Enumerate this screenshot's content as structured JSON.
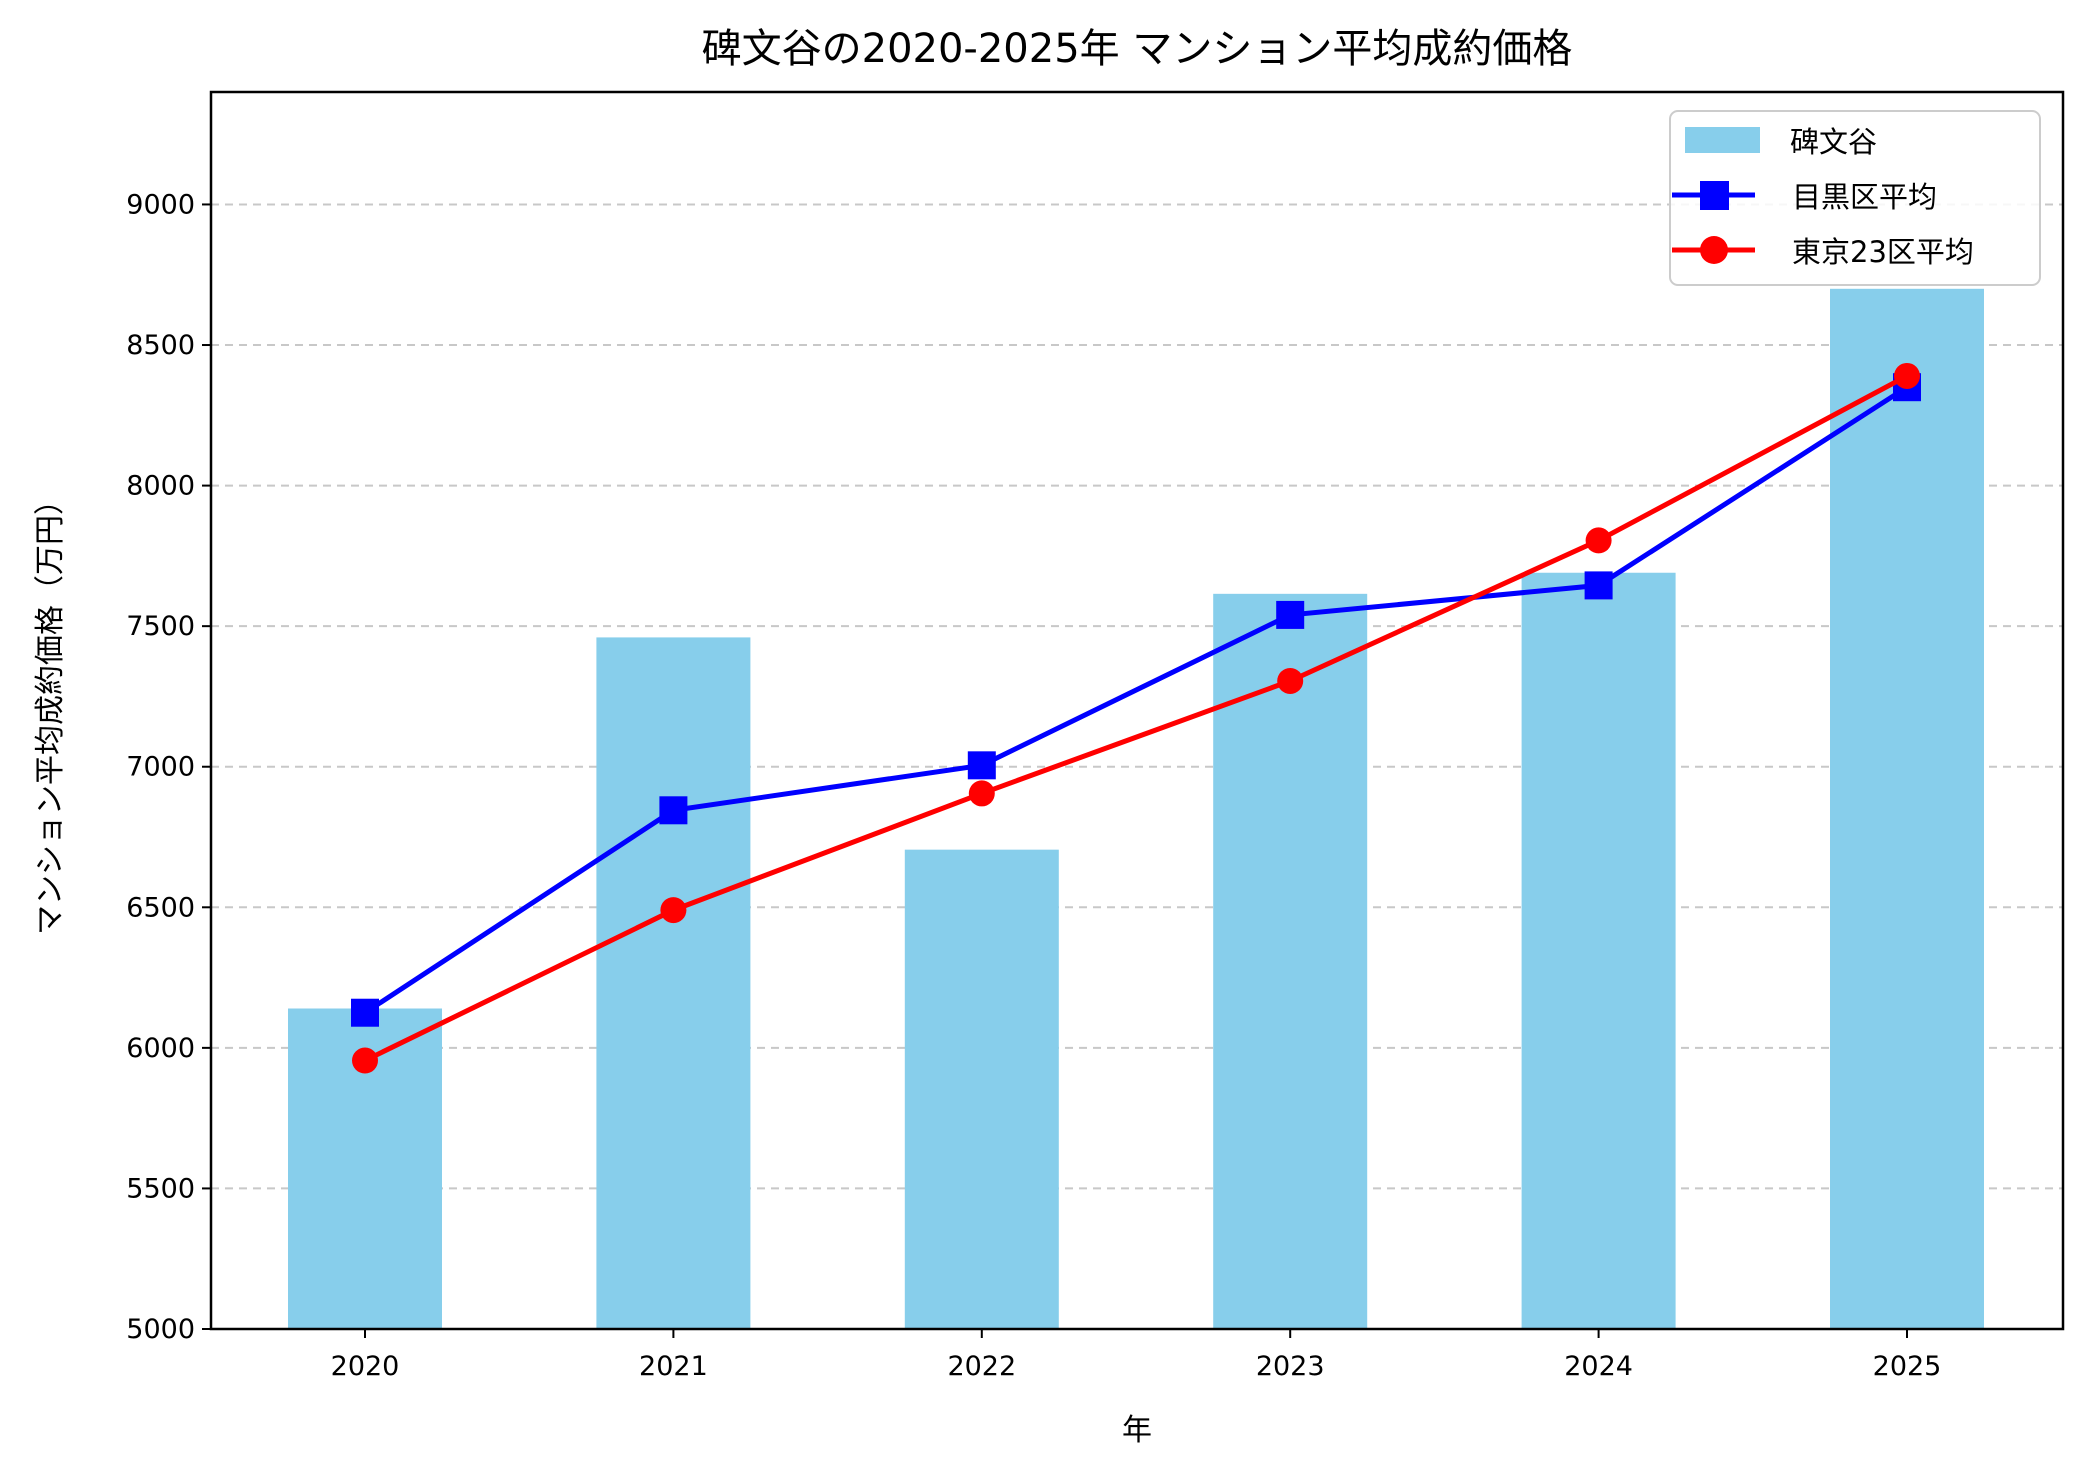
{
  "chart_data": {
    "type": "bar+line",
    "title": "碑文谷の2020-2025年 マンション平均成約価格",
    "xlabel": "年",
    "ylabel": "マンション平均成約価格（万円）",
    "categories": [
      "2020",
      "2021",
      "2022",
      "2023",
      "2024",
      "2025"
    ],
    "ylim": [
      5000,
      9400
    ],
    "yticks": [
      5000,
      5500,
      6000,
      6500,
      7000,
      7500,
      8000,
      8500,
      9000
    ],
    "grid": "y dashed",
    "legend": "top-right",
    "series": [
      {
        "name": "碑文谷",
        "type": "bar",
        "color": "#87CEEB",
        "values": [
          6140,
          7460,
          6705,
          7615,
          7690,
          8700
        ]
      },
      {
        "name": "目黒区平均",
        "type": "line",
        "marker": "square",
        "color": "#0000FF",
        "values": [
          6125,
          6845,
          7005,
          7540,
          7645,
          8350
        ]
      },
      {
        "name": "東京23区平均",
        "type": "line",
        "marker": "circle",
        "color": "#FF0000",
        "values": [
          5955,
          6490,
          6905,
          7305,
          7805,
          8390
        ]
      }
    ]
  }
}
